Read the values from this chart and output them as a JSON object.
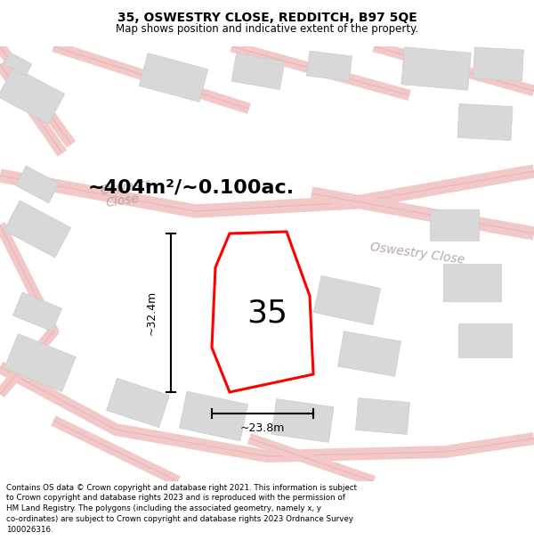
{
  "title": "35, OSWESTRY CLOSE, REDDITCH, B97 5QE",
  "subtitle": "Map shows position and indicative extent of the property.",
  "footer": "Contains OS data © Crown copyright and database right 2021. This information is subject\nto Crown copyright and database rights 2023 and is reproduced with the permission of\nHM Land Registry. The polygons (including the associated geometry, namely x, y\nco-ordinates) are subject to Crown copyright and database rights 2023 Ordnance Survey\n100026316.",
  "area_label": "~404m²/~0.100ac.",
  "width_label": "~23.8m",
  "height_label": "~32.4m",
  "house_number": "35",
  "road_color": "#f2c8c8",
  "building_color": "#d8d8d8",
  "plot_edge": "#ff0000",
  "plot_fill": "#ffffff",
  "road_label_color": "#b8a8a8",
  "map_bg": "#f8f2f2"
}
